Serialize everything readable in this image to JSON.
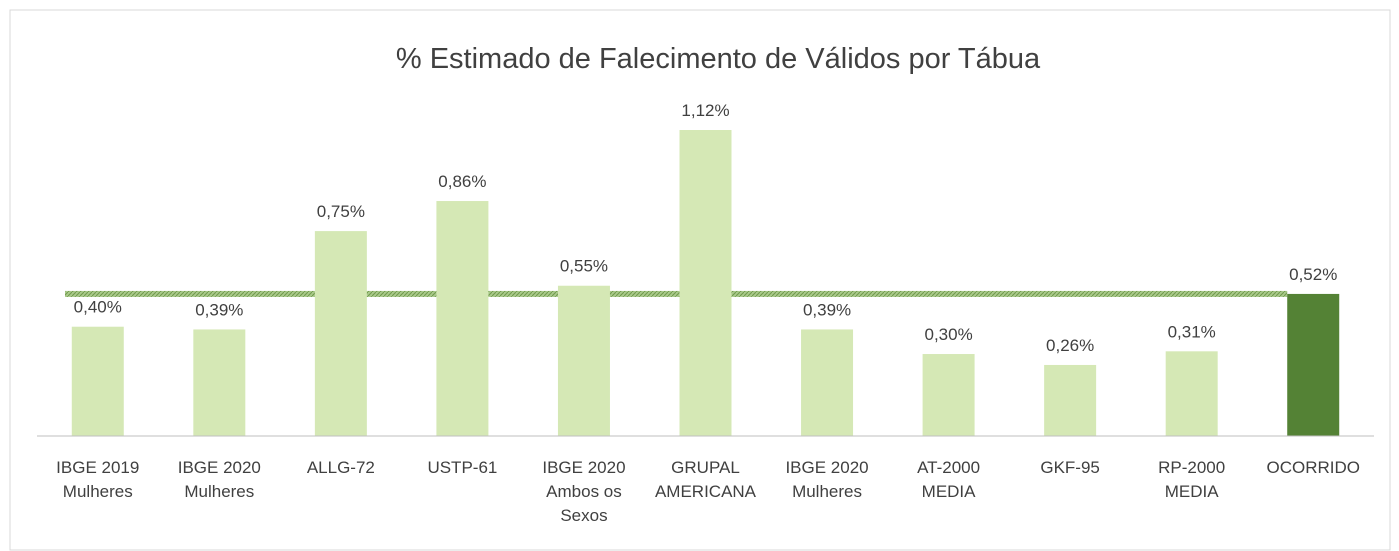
{
  "chart_data": {
    "type": "bar",
    "title": "% Estimado de Falecimento de Válidos por Tábua",
    "categories": [
      "IBGE 2019 Mulheres",
      "IBGE 2020 Mulheres",
      "ALLG-72",
      "USTP-61",
      "IBGE 2020 Ambos os Sexos",
      "GRUPAL AMERICANA",
      "IBGE 2020 Mulheres",
      "AT-2000 MEDIA",
      "GKF-95",
      "RP-2000 MEDIA",
      "OCORRIDO"
    ],
    "values": [
      0.4,
      0.39,
      0.75,
      0.86,
      0.55,
      1.12,
      0.39,
      0.3,
      0.26,
      0.31,
      0.52
    ],
    "value_labels": [
      "0,40%",
      "0,39%",
      "0,75%",
      "0,86%",
      "0,55%",
      "1,12%",
      "0,39%",
      "0,30%",
      "0,26%",
      "0,31%",
      "0,52%"
    ],
    "colors": [
      "#d5e8b5",
      "#d5e8b5",
      "#d5e8b5",
      "#d5e8b5",
      "#d5e8b5",
      "#d5e8b5",
      "#d5e8b5",
      "#d5e8b5",
      "#d5e8b5",
      "#d5e8b5",
      "#548235"
    ]
  }
}
